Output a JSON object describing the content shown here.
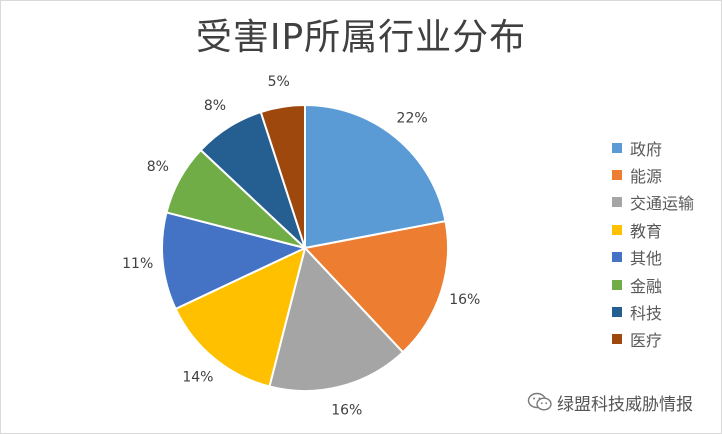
{
  "chart_data": {
    "type": "pie",
    "title": "受害IP所属行业分布",
    "categories": [
      "政府",
      "能源",
      "交通运输",
      "教育",
      "其他",
      "金融",
      "科技",
      "医疗"
    ],
    "values": [
      22,
      16,
      16,
      14,
      11,
      8,
      8,
      5
    ],
    "labels": [
      "22%",
      "16%",
      "16%",
      "14%",
      "11%",
      "8%",
      "8%",
      "5%"
    ],
    "colors": [
      "#5b9bd5",
      "#ed7d31",
      "#a5a5a5",
      "#ffc000",
      "#4472c4",
      "#70ad47",
      "#255e91",
      "#9e480e"
    ],
    "legend_position": "right"
  },
  "watermark": {
    "icon": "wechat-icon",
    "text": "绿盟科技威胁情报"
  }
}
